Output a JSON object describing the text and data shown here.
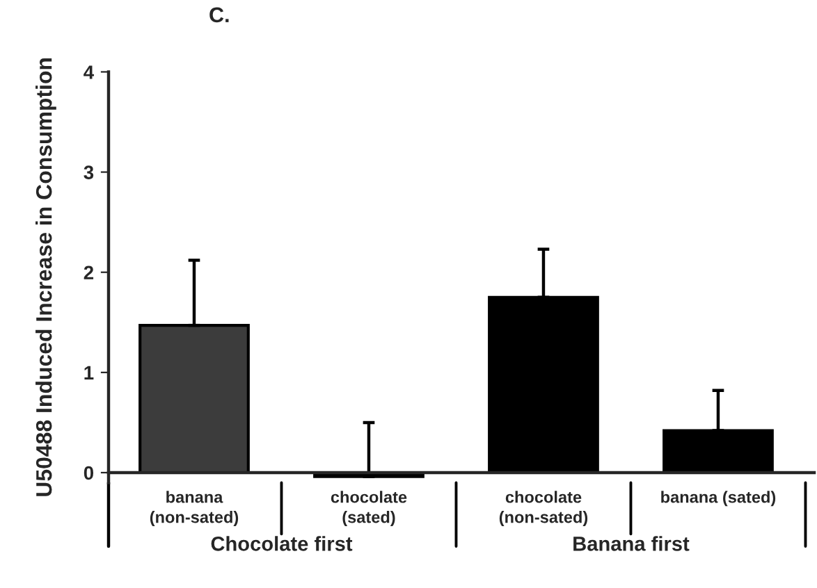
{
  "chart_data": {
    "type": "bar",
    "title": "C.",
    "ylabel": "U50488 Induced Increase in Consumption",
    "categories": [
      "banana\n(non-sated)",
      "chocolate\n(sated)",
      "chocolate\n(non-sated)",
      "banana (sated)"
    ],
    "values": [
      1.47,
      -0.04,
      1.75,
      0.42
    ],
    "errors": [
      [
        1.47,
        2.12
      ],
      [
        -0.04,
        0.5
      ],
      [
        1.75,
        2.23
      ],
      [
        0.42,
        0.82
      ]
    ],
    "colors": [
      "#3c3c3c",
      "#000000",
      "#000000",
      "#000000"
    ],
    "ylim": [
      -0.1,
      4
    ],
    "yticks": [
      0,
      1,
      2,
      3,
      4
    ],
    "grid": false,
    "legend": false,
    "annotations": [
      "Chocolate first",
      "Banana first"
    ]
  }
}
